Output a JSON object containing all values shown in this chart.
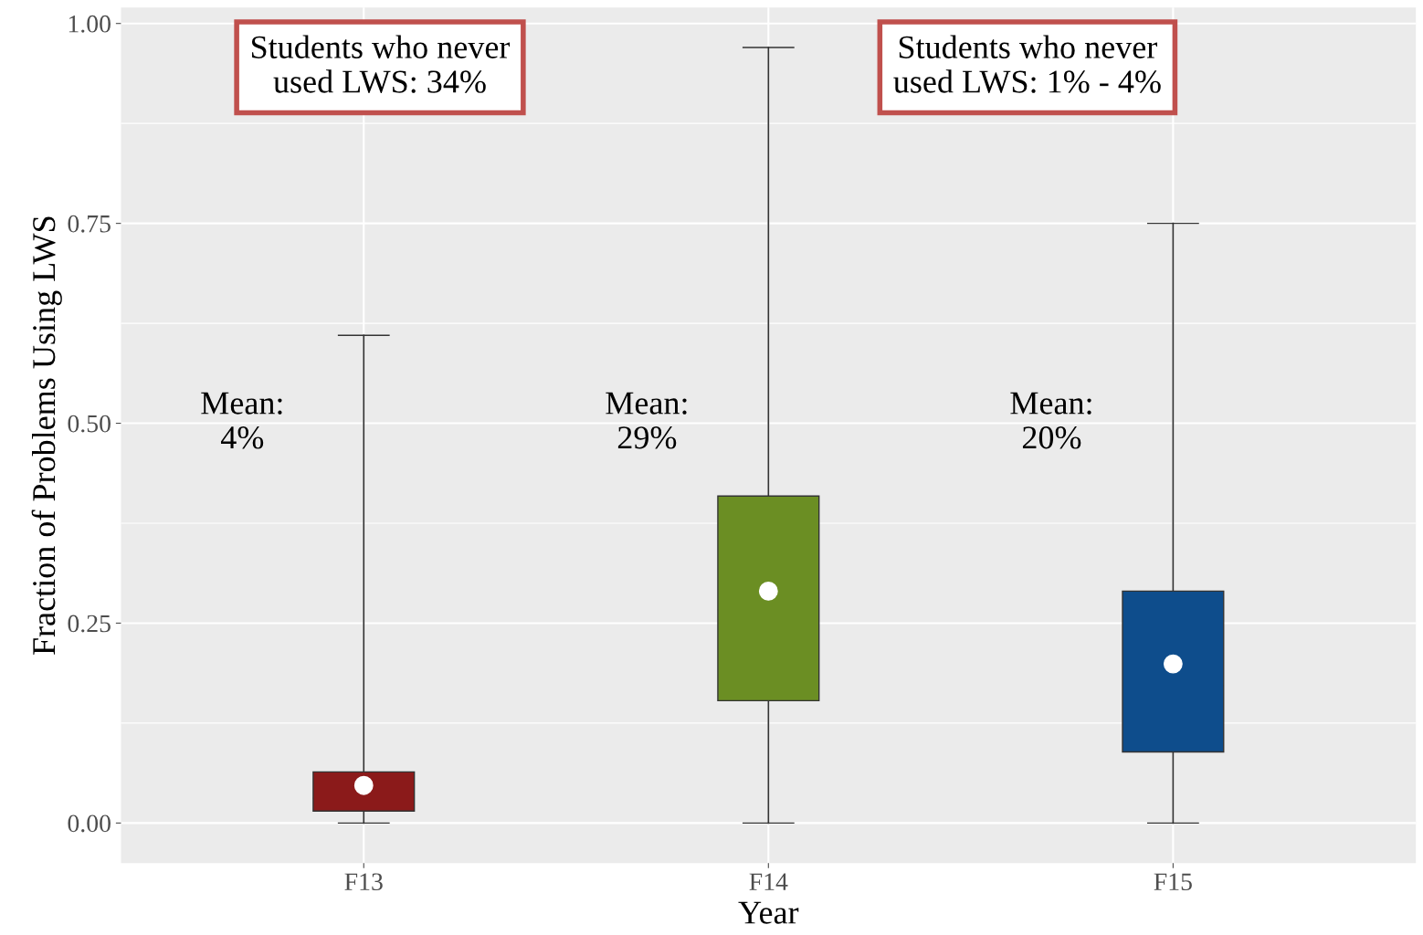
{
  "chart_data": {
    "type": "box",
    "xlabel": "Year",
    "ylabel": "Fraction of Problems Using LWS",
    "categories": [
      "F13",
      "F14",
      "F15"
    ],
    "colors": [
      "#8b1a1a",
      "#6b8e23",
      "#0e4d8c"
    ],
    "boxes": [
      {
        "low": 0,
        "q1": 0.015,
        "median": 0.031,
        "q3": 0.064,
        "high": 0.61,
        "mean": 0.047
      },
      {
        "low": 0,
        "q1": 0.153,
        "median": 0.267,
        "q3": 0.409,
        "high": 0.97,
        "mean": 0.29
      },
      {
        "low": 0,
        "q1": 0.089,
        "median": 0.172,
        "q3": 0.29,
        "high": 0.75,
        "mean": 0.199
      }
    ],
    "ylim": [
      -0.05,
      1.02
    ],
    "yticks": [
      {
        "value": 0,
        "label": "0.00"
      },
      {
        "value": 0.25,
        "label": "0.25"
      },
      {
        "value": 0.5,
        "label": "0.50"
      },
      {
        "value": 0.75,
        "label": "0.75"
      },
      {
        "value": 1,
        "label": "1.00"
      }
    ],
    "grid": true,
    "annotations": [
      "Students who never\nused LWS: 34%",
      "Students who never\nused LWS: 1% - 4%",
      "Mean:\n4%",
      "Mean:\n29%",
      "Mean:\n20%"
    ]
  }
}
